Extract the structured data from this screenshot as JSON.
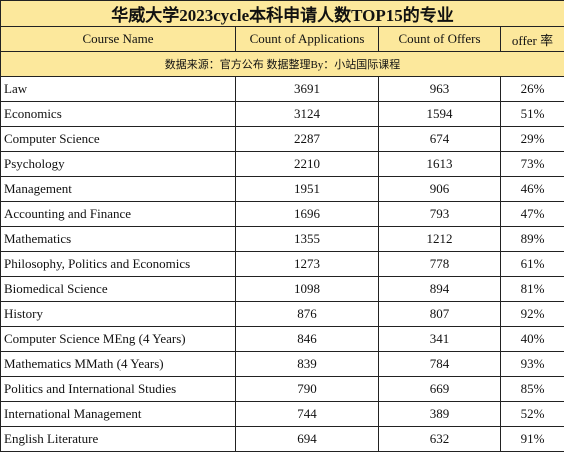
{
  "table": {
    "title": "华威大学2023cycle本科申请人数TOP15的专业",
    "columns": [
      "Course Name",
      "Count of Applications",
      "Count of Offers",
      "offer 率"
    ],
    "source": "数据来源：官方公布 数据整理By：小站国际课程",
    "rows": [
      [
        "Law",
        3691,
        963,
        "26%"
      ],
      [
        "Economics",
        3124,
        1594,
        "51%"
      ],
      [
        "Computer Science",
        2287,
        674,
        "29%"
      ],
      [
        "Psychology",
        2210,
        1613,
        "73%"
      ],
      [
        "Management",
        1951,
        906,
        "46%"
      ],
      [
        "Accounting and Finance",
        1696,
        793,
        "47%"
      ],
      [
        "Mathematics",
        1355,
        1212,
        "89%"
      ],
      [
        "Philosophy, Politics and Economics",
        1273,
        778,
        "61%"
      ],
      [
        "Biomedical Science",
        1098,
        894,
        "81%"
      ],
      [
        "History",
        876,
        807,
        "92%"
      ],
      [
        "Computer Science MEng (4 Years)",
        846,
        341,
        "40%"
      ],
      [
        "Mathematics MMath (4 Years)",
        839,
        784,
        "93%"
      ],
      [
        "Politics and International Studies",
        790,
        669,
        "85%"
      ],
      [
        "International Management",
        744,
        389,
        "52%"
      ],
      [
        "English Literature",
        694,
        632,
        "91%"
      ]
    ]
  }
}
